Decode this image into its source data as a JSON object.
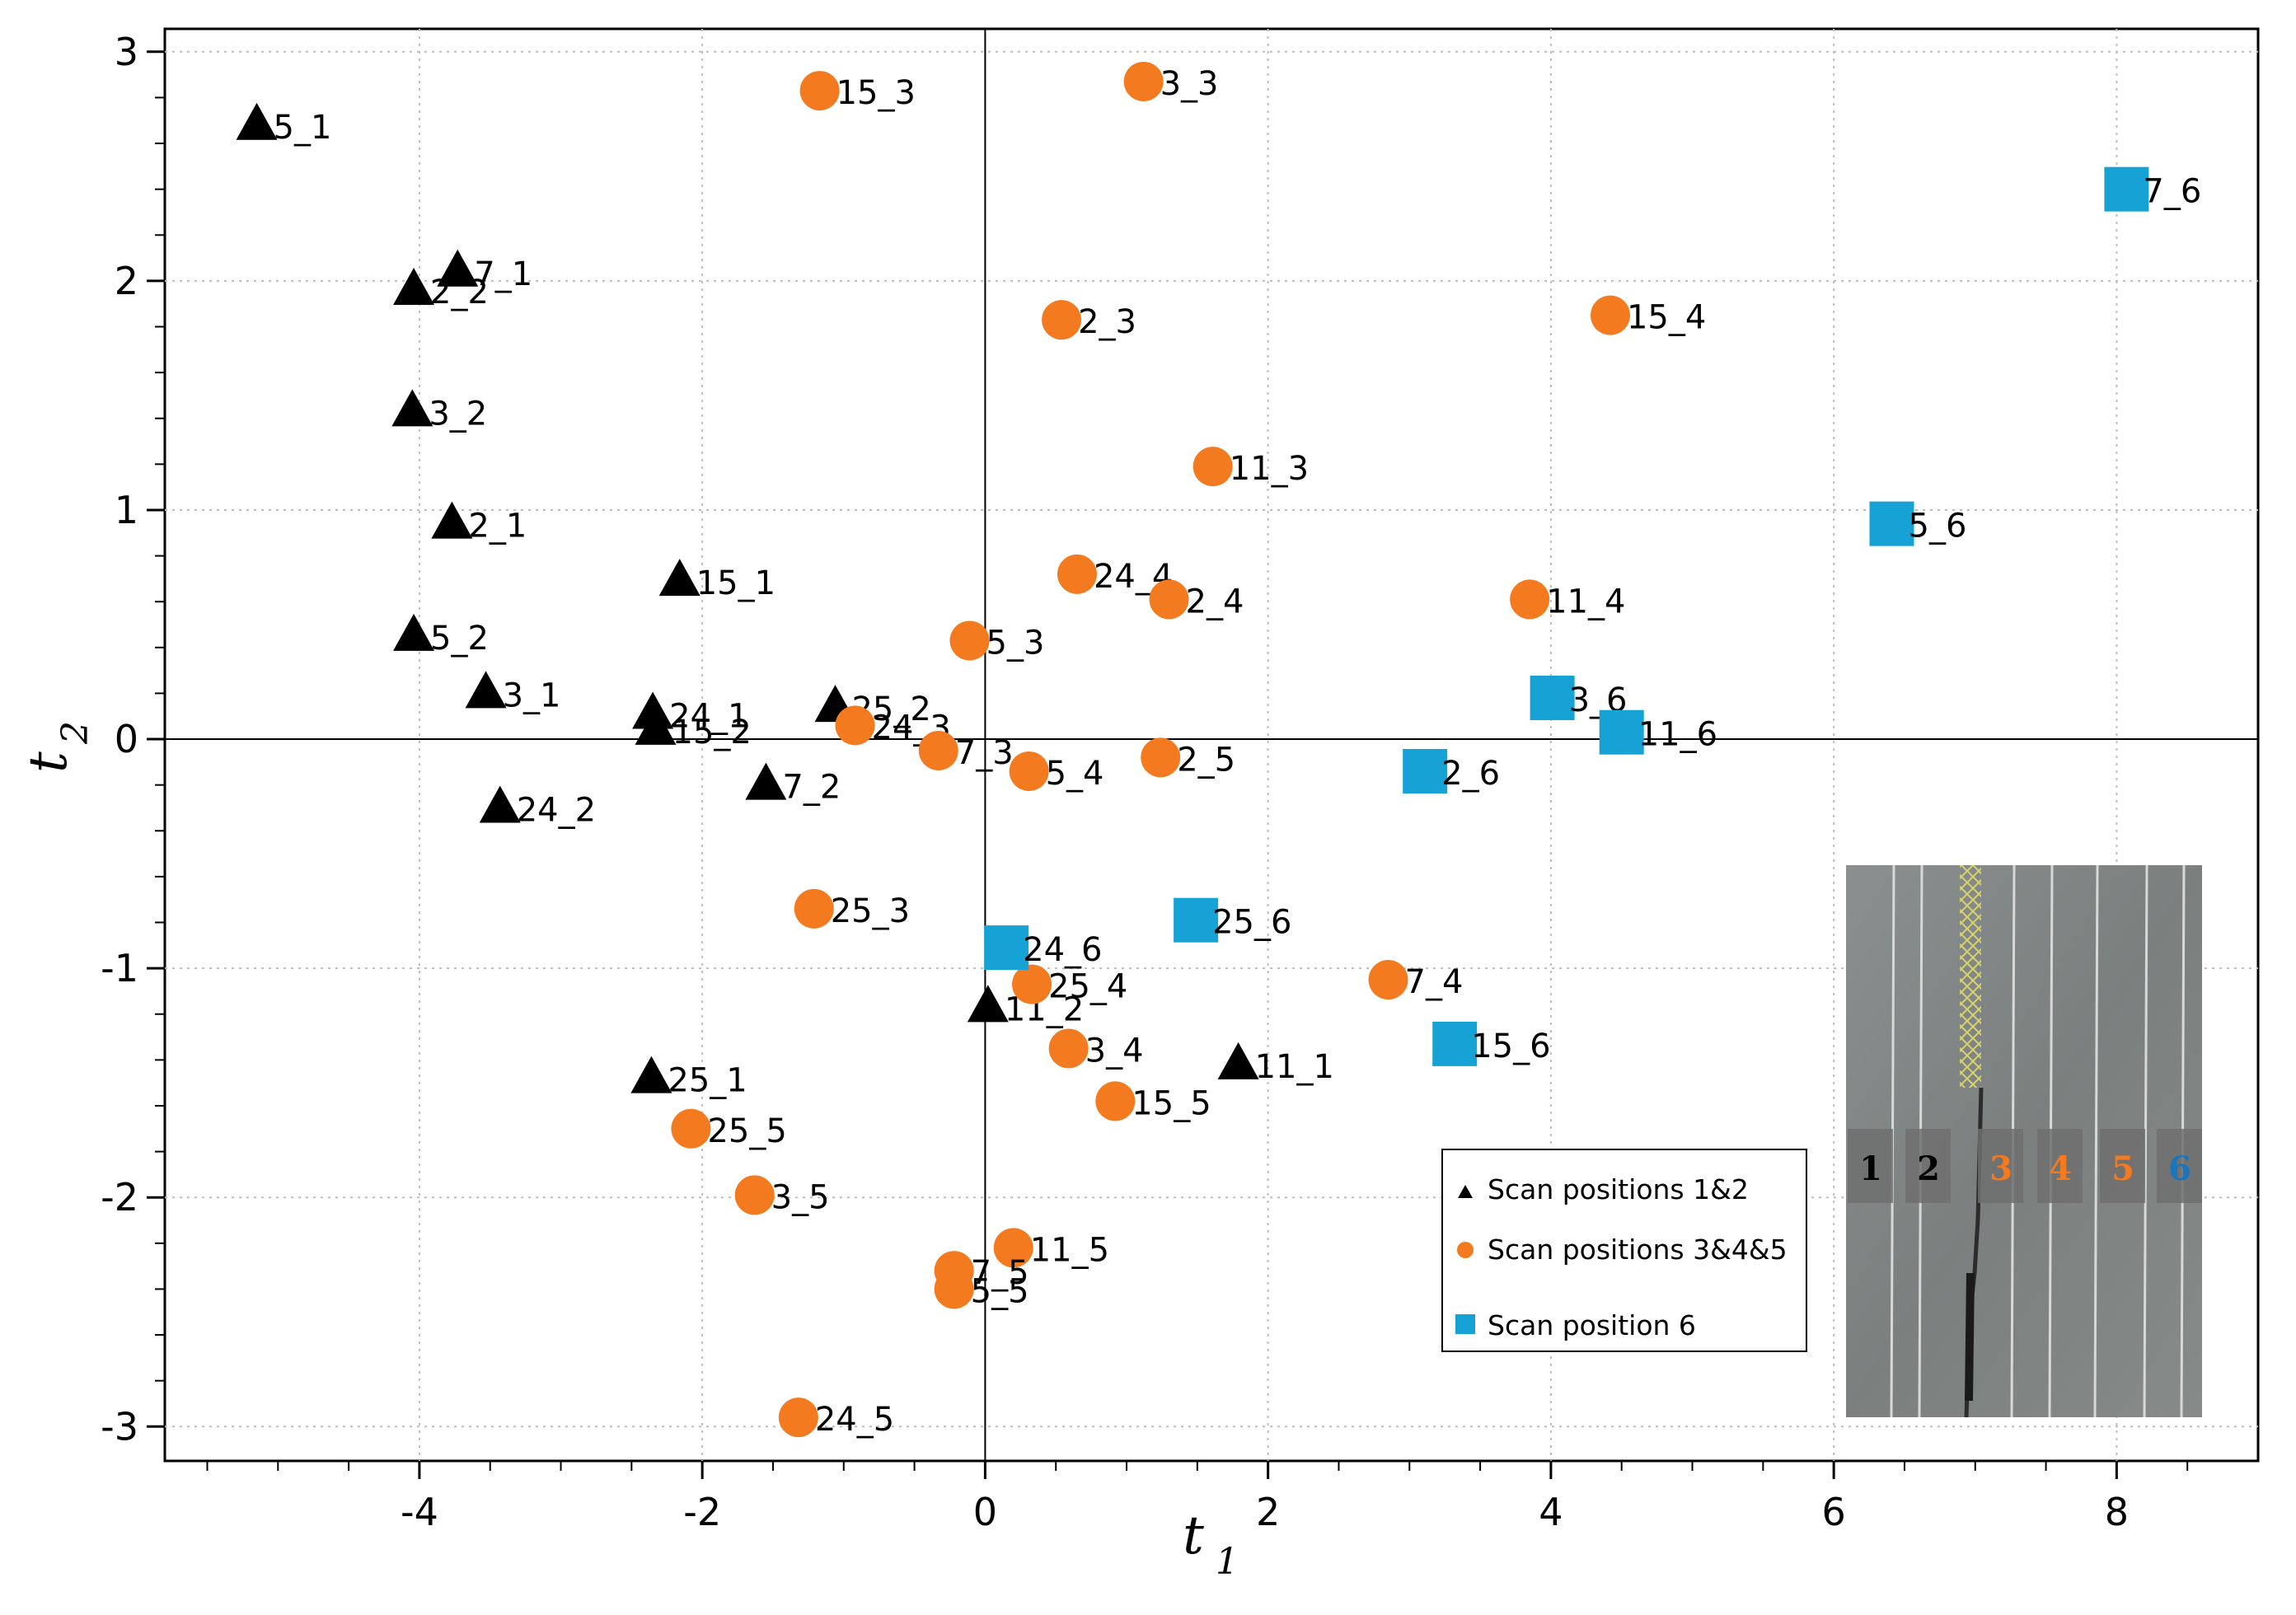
{
  "chart_data": {
    "type": "scatter",
    "title": "",
    "xlabel": "t",
    "xlabel_sub": "1",
    "ylabel": "t",
    "ylabel_sub": "2",
    "xlim": [
      -5.8,
      9.0
    ],
    "ylim": [
      -3.15,
      3.1
    ],
    "xticks": [
      -4,
      -2,
      0,
      2,
      4,
      6,
      8
    ],
    "yticks": [
      -3,
      -2,
      -1,
      0,
      1,
      2,
      3
    ],
    "xtick_labels": [
      "-4",
      "-2",
      "0",
      "2",
      "4",
      "6",
      "8"
    ],
    "ytick_labels": [
      "-3",
      "-2",
      "-1",
      "0",
      "1",
      "2",
      "3"
    ],
    "grid": "dotted",
    "origin_lines": true,
    "series": [
      {
        "name": "Scan positions 1&2",
        "marker": "triangle",
        "color": "#000000",
        "points": [
          {
            "label": "5_1",
            "x": -5.15,
            "y": 2.68
          },
          {
            "label": "7_1",
            "x": -3.73,
            "y": 2.04
          },
          {
            "label": "2_2",
            "x": -4.04,
            "y": 1.96
          },
          {
            "label": "3_2",
            "x": -4.05,
            "y": 1.43
          },
          {
            "label": "2_1",
            "x": -3.77,
            "y": 0.94
          },
          {
            "label": "15_1",
            "x": -2.16,
            "y": 0.69
          },
          {
            "label": "5_2",
            "x": -4.04,
            "y": 0.45
          },
          {
            "label": "3_1",
            "x": -3.53,
            "y": 0.2
          },
          {
            "label": "24_1",
            "x": -2.35,
            "y": 0.11
          },
          {
            "label": "15_2",
            "x": -2.33,
            "y": 0.04
          },
          {
            "label": "25_2",
            "x": -1.06,
            "y": 0.14
          },
          {
            "label": "7_2",
            "x": -1.55,
            "y": -0.2
          },
          {
            "label": "24_2",
            "x": -3.43,
            "y": -0.3
          },
          {
            "label": "11_2",
            "x": 0.02,
            "y": -1.17
          },
          {
            "label": "11_1",
            "x": 1.79,
            "y": -1.42
          },
          {
            "label": "25_1",
            "x": -2.36,
            "y": -1.48
          }
        ]
      },
      {
        "name": "Scan positions 3&4&5",
        "marker": "circle",
        "color": "#f47a20",
        "points": [
          {
            "label": "15_3",
            "x": -1.17,
            "y": 2.83
          },
          {
            "label": "3_3",
            "x": 1.12,
            "y": 2.87
          },
          {
            "label": "2_3",
            "x": 0.54,
            "y": 1.83
          },
          {
            "label": "15_4",
            "x": 4.42,
            "y": 1.85
          },
          {
            "label": "11_3",
            "x": 1.61,
            "y": 1.19
          },
          {
            "label": "24_4",
            "x": 0.65,
            "y": 0.72
          },
          {
            "label": "2_4",
            "x": 1.3,
            "y": 0.61
          },
          {
            "label": "11_4",
            "x": 3.85,
            "y": 0.61
          },
          {
            "label": "5_3",
            "x": -0.11,
            "y": 0.43
          },
          {
            "label": "24_3",
            "x": -0.92,
            "y": 0.06
          },
          {
            "label": "7_3",
            "x": -0.33,
            "y": -0.05
          },
          {
            "label": "5_4",
            "x": 0.31,
            "y": -0.14
          },
          {
            "label": "2_5",
            "x": 1.24,
            "y": -0.08
          },
          {
            "label": "25_3",
            "x": -1.21,
            "y": -0.74
          },
          {
            "label": "7_4",
            "x": 2.85,
            "y": -1.05
          },
          {
            "label": "25_4",
            "x": 0.33,
            "y": -1.07
          },
          {
            "label": "3_4",
            "x": 0.59,
            "y": -1.35
          },
          {
            "label": "15_5",
            "x": 0.92,
            "y": -1.58
          },
          {
            "label": "25_5",
            "x": -2.08,
            "y": -1.7
          },
          {
            "label": "3_5",
            "x": -1.63,
            "y": -1.99
          },
          {
            "label": "11_5",
            "x": 0.2,
            "y": -2.22
          },
          {
            "label": "7_5",
            "x": -0.22,
            "y": -2.32
          },
          {
            "label": "5_5",
            "x": -0.22,
            "y": -2.4
          },
          {
            "label": "24_5",
            "x": -1.32,
            "y": -2.96
          }
        ]
      },
      {
        "name": "Scan position 6",
        "marker": "square",
        "color": "#17a2d6",
        "points": [
          {
            "label": "7_6",
            "x": 8.07,
            "y": 2.4
          },
          {
            "label": "5_6",
            "x": 6.41,
            "y": 0.94
          },
          {
            "label": "3_6",
            "x": 4.01,
            "y": 0.18
          },
          {
            "label": "11_6",
            "x": 4.5,
            "y": 0.03
          },
          {
            "label": "2_6",
            "x": 3.11,
            "y": -0.14
          },
          {
            "label": "25_6",
            "x": 1.49,
            "y": -0.79
          },
          {
            "label": "24_6",
            "x": 0.15,
            "y": -0.91
          },
          {
            "label": "15_6",
            "x": 3.32,
            "y": -1.33
          }
        ]
      }
    ],
    "legend": {
      "placement": "bottom-right",
      "entries": [
        "Scan positions 1&2",
        "Scan positions 3&4&5",
        "Scan position 6"
      ]
    },
    "inset_photo": {
      "placement": "bottom-right",
      "position_numbers": [
        "1",
        "2",
        "3",
        "4",
        "5",
        "6"
      ],
      "number_colors": [
        "#000000",
        "#000000",
        "#f47a20",
        "#f47a20",
        "#f47a20",
        "#1b75bc"
      ]
    }
  }
}
